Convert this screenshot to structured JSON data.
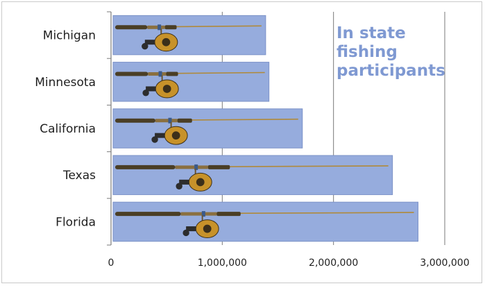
{
  "chart_data": {
    "type": "bar",
    "orientation": "horizontal",
    "title_lines": [
      "In state",
      "fishing",
      "participants"
    ],
    "categories": [
      "Michigan",
      "Minnesota",
      "California",
      "Texas",
      "Florida"
    ],
    "values": [
      1390000,
      1420000,
      1720000,
      2530000,
      2760000
    ],
    "x_ticks": [
      "0",
      "1,000,000",
      "2,000,000",
      "3,000,000"
    ],
    "xlim": [
      0,
      3000000
    ],
    "xlabel": "",
    "ylabel": "",
    "grid": "vertical",
    "legend": "none",
    "colors": {
      "bar_fill": "#96acdd",
      "bar_stroke": "#7c92c8",
      "title": "#7f99d2",
      "grid": "#7a7a7a",
      "rod": "#4a3e25",
      "reel": "#c7922a"
    },
    "icons": [
      "fishing-rod-icon",
      "fishing-reel-icon"
    ]
  }
}
